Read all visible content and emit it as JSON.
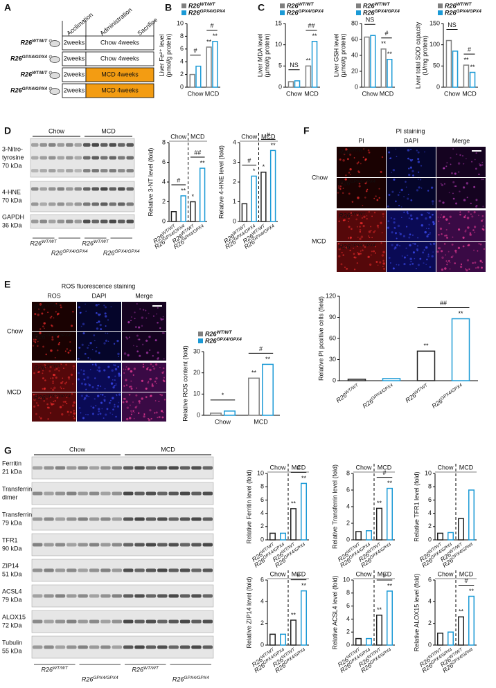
{
  "letters": [
    "A",
    "B",
    "C",
    "D",
    "E",
    "F",
    "G"
  ],
  "A": {
    "headers": [
      "Acclimation",
      "Administration",
      "Sacrifice"
    ],
    "highlight_color": "#f39c12",
    "rows": [
      {
        "genotype": "R26WT/WT",
        "acclimation": "2weeks",
        "diet": "Chow 4weeks",
        "highlight": false
      },
      {
        "genotype": "R26GPX4/GPX4",
        "acclimation": "2weeks",
        "diet": "Chow 4weeks",
        "highlight": false
      },
      {
        "genotype": "R26WT/WT",
        "acclimation": "2weeks",
        "diet": "MCD 4weeks",
        "highlight": true
      },
      {
        "genotype": "R26GPX4/GPX4",
        "acclimation": "2weeks",
        "diet": "MCD 4weeks",
        "highlight": true
      }
    ]
  },
  "D_blot": {
    "groups": [
      "Chow",
      "MCD"
    ],
    "genotypes": [
      "R26WT/WT",
      "R26GPX4/GPX4",
      "R26WT/WT",
      "R26GPX4/GPX4"
    ],
    "rows": [
      {
        "lines": [
          "3-Nitro-",
          "tyrosine"
        ],
        "kda": "70 kDa"
      },
      {
        "lines": [
          "4-HNE"
        ],
        "kda": "70 kDa"
      },
      {
        "lines": [
          "GAPDH"
        ],
        "kda": "36 kDa"
      }
    ]
  },
  "G_blot": {
    "groups": [
      "Chow",
      "MCD"
    ],
    "genotypes": [
      "R26WT/WT",
      "R26GPX4/GPX4",
      "R26WT/WT",
      "R26GPX4/GPX4"
    ],
    "rows": [
      {
        "lines": [
          "Ferritin"
        ],
        "kda": "21 kDa"
      },
      {
        "lines": [
          "Transferrin",
          "dimer"
        ]
      },
      {
        "lines": [
          "Transferrin"
        ],
        "kda": "79 kDa"
      },
      {
        "lines": [
          "TFR1"
        ],
        "kda": "90 kDa"
      },
      {
        "lines": [
          "ZIP14"
        ],
        "kda": "51 kDa"
      },
      {
        "lines": [
          "ACSL4"
        ],
        "kda": "79 kDa"
      },
      {
        "lines": [
          "ALOX15"
        ],
        "kda": "72 kDa"
      },
      {
        "lines": [
          "Tubulin"
        ],
        "kda": "55 kDa"
      }
    ]
  },
  "E_images": {
    "title": "ROS fluorescence staining",
    "title_color": "#111111",
    "channels": [
      "ROS",
      "DAPI",
      "Merge"
    ],
    "channel_colors": [
      "#e02020",
      "#2a3bc0",
      "#111111"
    ],
    "conditions": [
      "Chow",
      "MCD"
    ],
    "genotypes": [
      "R26WT/WT",
      "R26GPX4/GPX4"
    ]
  },
  "F_images": {
    "title": "PI staining",
    "title_color": "#e02020",
    "channels": [
      "PI",
      "DAPI",
      "Merge"
    ],
    "channel_colors": [
      "#e02020",
      "#2a3bc0",
      "#111111"
    ],
    "conditions": [
      "Chow",
      "MCD"
    ],
    "genotypes": [
      "R26WT/WT",
      "R26GPX4/GPX4"
    ]
  },
  "chart_data": [
    {
      "type": "bar",
      "ylabel": [
        "Liver Fe²⁺ level",
        "(pmol/g protein)"
      ],
      "categories": [
        "Chow",
        "MCD"
      ],
      "series": [
        {
          "name": "R26WT/WT",
          "color": "#7f7f7f",
          "values": [
            2.0,
            6.3
          ],
          "stars": [
            null,
            "**"
          ]
        },
        {
          "name": "R26GPX4/GPX4",
          "color": "#1b9ad6",
          "values": [
            3.3,
            7.2
          ],
          "stars": [
            null,
            "**"
          ]
        }
      ],
      "ylim": [
        0,
        10
      ],
      "yticks": [
        0,
        2,
        4,
        6,
        8,
        10
      ],
      "brackets": [
        {
          "label": "#",
          "group": "Chow"
        },
        {
          "label": "#",
          "group": "MCD"
        }
      ]
    },
    {
      "type": "bar",
      "ylabel": [
        "Liver MDA level",
        "(µmol/g protein)"
      ],
      "categories": [
        "Chow",
        "MCD"
      ],
      "series": [
        {
          "name": "R26WT/WT",
          "color": "#7f7f7f",
          "values": [
            1.3,
            5.0
          ],
          "stars": [
            null,
            "**"
          ]
        },
        {
          "name": "R26GPX4/GPX4",
          "color": "#1b9ad6",
          "values": [
            1.5,
            10.8
          ],
          "stars": [
            null,
            "**"
          ]
        }
      ],
      "ylim": [
        0,
        15
      ],
      "yticks": [
        0,
        5,
        10,
        15
      ],
      "brackets": [
        {
          "label": "NS",
          "group": "Chow"
        },
        {
          "label": "##",
          "group": "MCD"
        }
      ]
    },
    {
      "type": "bar",
      "ylabel": [
        "Liver GSH level",
        "(µmol/g protein)"
      ],
      "categories": [
        "Chow",
        "MCD"
      ],
      "series": [
        {
          "name": "R26WT/WT",
          "color": "#7f7f7f",
          "values": [
            63,
            48
          ],
          "stars": [
            null,
            "**"
          ]
        },
        {
          "name": "R26GPX4/GPX4",
          "color": "#1b9ad6",
          "values": [
            65,
            35
          ],
          "stars": [
            null,
            "**"
          ]
        }
      ],
      "ylim": [
        0,
        80
      ],
      "yticks": [
        0,
        20,
        40,
        60,
        80
      ],
      "brackets": [
        {
          "label": "NS",
          "group": "Chow"
        },
        {
          "label": "#",
          "group": "MCD"
        }
      ]
    },
    {
      "type": "bar",
      "ylabel": [
        "Liver total SOD capacity",
        "(U/mg protein)"
      ],
      "categories": [
        "Chow",
        "MCD"
      ],
      "series": [
        {
          "name": "R26WT/WT",
          "color": "#7f7f7f",
          "values": [
            110,
            52
          ],
          "stars": [
            null,
            "**"
          ]
        },
        {
          "name": "R26GPX4/GPX4",
          "color": "#1b9ad6",
          "values": [
            85,
            35
          ],
          "stars": [
            null,
            "**"
          ]
        }
      ],
      "ylim": [
        0,
        150
      ],
      "yticks": [
        0,
        50,
        100,
        150
      ],
      "brackets": [
        {
          "label": "NS",
          "group": "Chow"
        },
        {
          "label": "#",
          "group": "MCD"
        }
      ]
    },
    {
      "type": "bar",
      "ylabel": [
        "Relative 3-NT level (fold)"
      ],
      "categories": [
        "R26WT/WT",
        "R26GPX4/GPX4",
        "R26WT/WT",
        "R26GPX4/GPX4"
      ],
      "groups": [
        "Chow",
        "MCD"
      ],
      "values": [
        1.0,
        2.6,
        2.0,
        5.4
      ],
      "colors": [
        "#222222",
        "#1b9ad6",
        "#222222",
        "#1b9ad6"
      ],
      "stars": [
        null,
        "**",
        "*",
        "**"
      ],
      "ylim": [
        0,
        8
      ],
      "yticks": [
        0,
        2,
        4,
        6,
        8
      ],
      "brackets": [
        {
          "label": "#",
          "bars": [
            0,
            1
          ]
        },
        {
          "label": "##",
          "bars": [
            2,
            3
          ]
        }
      ]
    },
    {
      "type": "bar",
      "ylabel": [
        "Relative 4-HNE level (fold)"
      ],
      "categories": [
        "R26WT/WT",
        "R26GPX4/GPX4",
        "R26WT/WT",
        "R26GPX4/GPX4"
      ],
      "groups": [
        "Chow",
        "MCD"
      ],
      "values": [
        0.9,
        2.3,
        2.5,
        3.6
      ],
      "colors": [
        "#222222",
        "#1b9ad6",
        "#222222",
        "#1b9ad6"
      ],
      "stars": [
        null,
        "*",
        "*",
        "**"
      ],
      "ylim": [
        0,
        4
      ],
      "yticks": [
        0,
        1,
        2,
        3,
        4
      ],
      "brackets": [
        {
          "label": "#",
          "bars": [
            0,
            1
          ]
        },
        {
          "label": "#",
          "bars": [
            2,
            3
          ]
        }
      ]
    },
    {
      "type": "bar",
      "ylabel": [
        "Relative ROS content (fold)"
      ],
      "categories": [
        "Chow",
        "MCD"
      ],
      "series": [
        {
          "name": "R26WT/WT",
          "color": "#7f7f7f",
          "values": [
            1.0,
            17.5
          ],
          "stars": [
            null,
            "**"
          ]
        },
        {
          "name": "R26GPX4/GPX4",
          "color": "#1b9ad6",
          "values": [
            2.0,
            24.0
          ],
          "stars": [
            null,
            "**"
          ]
        }
      ],
      "ylim": [
        0,
        30
      ],
      "yticks": [
        0,
        10,
        20,
        30
      ],
      "brackets": [
        {
          "label": "*",
          "group": "Chow"
        },
        {
          "label": "#",
          "group": "MCD"
        }
      ]
    },
    {
      "type": "bar",
      "ylabel": [
        "Relative PI positive cells (field)"
      ],
      "categories": [
        "R26WT/WT",
        "R26GPX4/GPX4",
        "R26WT/WT",
        "R26GPX4/GPX4"
      ],
      "values": [
        2,
        3,
        42,
        88
      ],
      "colors": [
        "#222222",
        "#1b9ad6",
        "#222222",
        "#1b9ad6"
      ],
      "stars": [
        null,
        null,
        "**",
        "**"
      ],
      "ylim": [
        0,
        120
      ],
      "yticks": [
        0,
        30,
        60,
        90,
        120
      ],
      "brackets": [
        {
          "label": "##",
          "bars": [
            2,
            3
          ]
        }
      ]
    },
    {
      "type": "bar",
      "ylabel": [
        "Relative Ferritin level (fold)"
      ],
      "categories": [
        "R26WT/WT",
        "R26GPX4/GPX4",
        "R26WT/WT",
        "R26GPX4/GPX4"
      ],
      "groups": [
        "Chow",
        "MCD"
      ],
      "values": [
        1.0,
        1.0,
        4.7,
        8.5
      ],
      "colors": [
        "#222222",
        "#1b9ad6",
        "#222222",
        "#1b9ad6"
      ],
      "stars": [
        null,
        null,
        "**",
        "**"
      ],
      "ylim": [
        0,
        10
      ],
      "yticks": [
        0,
        2,
        4,
        6,
        8,
        10
      ],
      "brackets": [
        {
          "label": "#",
          "bars": [
            2,
            3
          ]
        }
      ]
    },
    {
      "type": "bar",
      "ylabel": [
        "Relative Transferrin level (fold)"
      ],
      "categories": [
        "R26WT/WT",
        "R26GPX4/GPX4",
        "R26WT/WT",
        "R26GPX4/GPX4"
      ],
      "groups": [
        "Chow",
        "MCD"
      ],
      "values": [
        1.0,
        1.1,
        3.8,
        6.2
      ],
      "colors": [
        "#222222",
        "#1b9ad6",
        "#222222",
        "#1b9ad6"
      ],
      "stars": [
        null,
        null,
        "**",
        "**"
      ],
      "ylim": [
        0,
        8
      ],
      "yticks": [
        0,
        2,
        4,
        6,
        8
      ],
      "brackets": [
        {
          "label": "#",
          "bars": [
            2,
            3
          ]
        }
      ]
    },
    {
      "type": "bar",
      "ylabel": [
        "Relative TFR1 level (fold)"
      ],
      "categories": [
        "R26WT/WT",
        "R26GPX4/GPX4",
        "R26WT/WT",
        "R26GPX4/GPX4"
      ],
      "groups": [
        "Chow",
        "MCD"
      ],
      "values": [
        1.0,
        1.1,
        3.2,
        7.5
      ],
      "colors": [
        "#222222",
        "#1b9ad6",
        "#222222",
        "#1b9ad6"
      ],
      "ylim": [
        0,
        10
      ],
      "yticks": [
        0,
        2,
        4,
        6,
        8,
        10
      ]
    },
    {
      "type": "bar",
      "ylabel": [
        "Relative ZIP14 level (fold)"
      ],
      "categories": [
        "R26WT/WT",
        "R26GPX4/GPX4",
        "R26WT/WT",
        "R26GPX4/GPX4"
      ],
      "groups": [
        "Chow",
        "MCD"
      ],
      "values": [
        1.0,
        1.0,
        2.3,
        5.0
      ],
      "colors": [
        "#222222",
        "#1b9ad6",
        "#222222",
        "#1b9ad6"
      ],
      "stars": [
        null,
        null,
        "**",
        "**"
      ],
      "ylim": [
        0,
        6
      ],
      "yticks": [
        0,
        2,
        4,
        6
      ],
      "brackets": [
        {
          "label": "#",
          "bars": [
            2,
            3
          ]
        }
      ]
    },
    {
      "type": "bar",
      "ylabel": [
        "Relative ACSL4 level (fold)"
      ],
      "categories": [
        "R26WT/WT",
        "R26GPX4/GPX4",
        "R26WT/WT",
        "R26GPX4/GPX4"
      ],
      "groups": [
        "Chow",
        "MCD"
      ],
      "values": [
        1.0,
        1.0,
        4.6,
        8.3
      ],
      "colors": [
        "#222222",
        "#1b9ad6",
        "#222222",
        "#1b9ad6"
      ],
      "stars": [
        null,
        null,
        "**",
        "**"
      ],
      "ylim": [
        0,
        10
      ],
      "yticks": [
        0,
        2,
        4,
        6,
        8,
        10
      ],
      "brackets": [
        {
          "label": "#",
          "bars": [
            2,
            3
          ]
        }
      ]
    },
    {
      "type": "bar",
      "ylabel": [
        "Relative ALOX15 level (fold)"
      ],
      "categories": [
        "R26WT/WT",
        "R26GPX4/GPX4",
        "R26WT/WT",
        "R26GPX4/GPX4"
      ],
      "groups": [
        "Chow",
        "MCD"
      ],
      "values": [
        1.1,
        1.2,
        2.6,
        4.5
      ],
      "colors": [
        "#222222",
        "#1b9ad6",
        "#222222",
        "#1b9ad6"
      ],
      "stars": [
        null,
        null,
        "**",
        "**"
      ],
      "ylim": [
        0,
        6
      ],
      "yticks": [
        0,
        2,
        4,
        6
      ],
      "brackets": [
        {
          "label": "#",
          "bars": [
            2,
            3
          ]
        }
      ]
    }
  ]
}
